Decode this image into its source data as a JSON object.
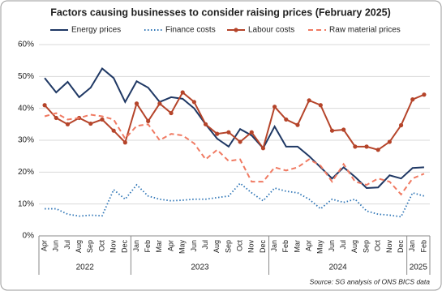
{
  "chart_data": {
    "type": "line",
    "title": "Factors causing businesses to consider raising prices (February 2025)",
    "source": "Source: SG analysis of ONS BICS data",
    "year_groups": [
      {
        "label": "2022",
        "months": [
          "Apr",
          "Jun",
          "Jul",
          "Aug",
          "Sep",
          "Oct",
          "Nov",
          "Dec"
        ]
      },
      {
        "label": "2023",
        "months": [
          "Jan",
          "Feb",
          "Mar",
          "Apr",
          "May",
          "Jun",
          "Jul",
          "Aug",
          "Sep",
          "Oct",
          "Nov",
          "Dec"
        ]
      },
      {
        "label": "2024",
        "months": [
          "Jan",
          "Feb",
          "Mar",
          "Apr",
          "May",
          "Jun",
          "Jul",
          "Aug",
          "Sep",
          "Oct",
          "Nov",
          "Dec"
        ]
      },
      {
        "label": "2025",
        "months": [
          "Jan",
          "Feb"
        ]
      }
    ],
    "ylim": [
      0,
      60
    ],
    "yticks": [
      {
        "value": 0,
        "label": "0%"
      },
      {
        "value": 10,
        "label": "10%"
      },
      {
        "value": 20,
        "label": "20%"
      },
      {
        "value": 30,
        "label": "30%"
      },
      {
        "value": 40,
        "label": "40%"
      },
      {
        "value": 50,
        "label": "50%"
      },
      {
        "value": 60,
        "label": "60%"
      }
    ],
    "grid": true,
    "legend": "top",
    "series": [
      {
        "name": "Energy prices",
        "color": "#1f3864",
        "dash": "solid",
        "marker": "none",
        "values": [
          49.5,
          45,
          48.3,
          43.5,
          46.5,
          52.5,
          49.5,
          42,
          48.5,
          46.5,
          42,
          43.5,
          43,
          40,
          35,
          30.5,
          28,
          33.5,
          31.5,
          27.5,
          34.3,
          28,
          28,
          25,
          21.5,
          18,
          21.5,
          18.5,
          15,
          15.2,
          19,
          18,
          21.3,
          21.5
        ]
      },
      {
        "name": "Finance costs",
        "color": "#2e75b6",
        "dash": "dotted",
        "marker": "none",
        "values": [
          8.5,
          8.5,
          6.8,
          6.2,
          6.5,
          6.3,
          14.5,
          11.5,
          16,
          12.5,
          11.5,
          11,
          11.2,
          11.5,
          11.5,
          12,
          12.5,
          16.5,
          13.5,
          11,
          15,
          14,
          13.5,
          11.5,
          8.5,
          11.5,
          10.5,
          11.5,
          7.8,
          6.8,
          6.5,
          6,
          13.5,
          12.5
        ]
      },
      {
        "name": "Labour costs",
        "color": "#b5442a",
        "dash": "solid",
        "marker": "circle",
        "values": [
          41,
          37,
          35,
          37,
          35.2,
          36.5,
          33,
          29.3,
          41.5,
          36,
          41.5,
          38.5,
          45,
          42,
          35,
          32,
          32.5,
          29.5,
          32.5,
          27.5,
          40.5,
          36.5,
          34.8,
          42.5,
          41,
          33,
          33.3,
          28,
          28,
          27,
          29.5,
          34.7,
          42.8,
          44.3
        ]
      },
      {
        "name": "Raw material prices",
        "color": "#f07a62",
        "dash": "dashed",
        "marker": "none",
        "values": [
          37.5,
          38.5,
          36.5,
          37,
          38,
          37.5,
          36.5,
          30.5,
          34.5,
          35,
          30,
          32,
          31.5,
          29,
          24,
          27,
          23.5,
          24,
          17,
          17,
          21.5,
          20.5,
          21.5,
          24,
          22,
          17,
          22.5,
          17,
          16,
          18,
          17,
          13,
          18,
          19.5
        ]
      }
    ]
  }
}
